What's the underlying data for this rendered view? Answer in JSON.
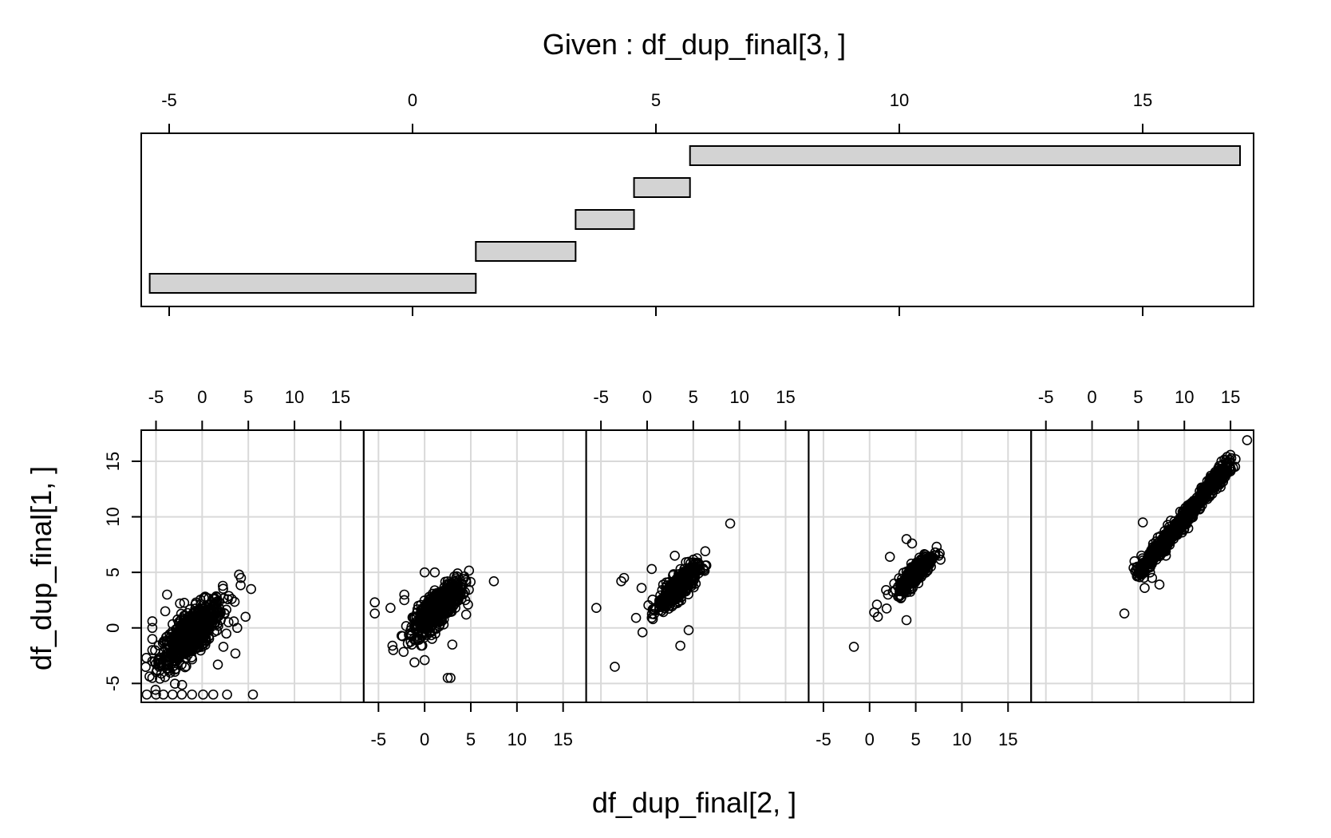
{
  "chart_data": {
    "type": "scatter",
    "subtype": "coplot",
    "given_label": "Given : df_dup_final[3, ]",
    "xlabel": "df_dup_final[2, ]",
    "ylabel": "df_dup_final[1, ]",
    "given_axis": {
      "range": [
        -5.6,
        17.2
      ],
      "ticks": [
        -5,
        0,
        5,
        10,
        15
      ]
    },
    "given_intervals": [
      {
        "from": -5.4,
        "to": 1.3
      },
      {
        "from": 1.3,
        "to": 3.35
      },
      {
        "from": 3.35,
        "to": 4.55
      },
      {
        "from": 4.55,
        "to": 5.7
      },
      {
        "from": 5.7,
        "to": 17.0
      }
    ],
    "panel_x_range": [
      -6.6,
      17.5
    ],
    "panel_x_ticks": [
      -5,
      0,
      5,
      10,
      15
    ],
    "panel_y_range": [
      -6.7,
      17.8
    ],
    "panel_y_ticks": [
      -5,
      0,
      5,
      10,
      15
    ],
    "grid": true,
    "panels": [
      {
        "outliers": [
          [
            -6,
            -6
          ],
          [
            -5,
            -6
          ],
          [
            -4.2,
            -6
          ],
          [
            -3.2,
            -6
          ],
          [
            -2.2,
            -6
          ],
          [
            -1.1,
            -6
          ],
          [
            0.1,
            -6
          ],
          [
            1.2,
            -6
          ],
          [
            2.7,
            -6
          ],
          [
            5.5,
            -6
          ],
          [
            -5.4,
            -4.5
          ],
          [
            -5.4,
            -3
          ],
          [
            -5.4,
            -2
          ],
          [
            -5.4,
            -1
          ],
          [
            -5.4,
            0
          ],
          [
            -5.4,
            0.6
          ],
          [
            -3.8,
            3
          ],
          [
            -4,
            1.5
          ],
          [
            -2.4,
            2.2
          ],
          [
            4,
            4.8
          ],
          [
            4.2,
            4.5
          ],
          [
            5.3,
            3.5
          ],
          [
            4.7,
            1
          ],
          [
            3.8,
            0
          ],
          [
            3.6,
            -2.3
          ],
          [
            1.7,
            -3.3
          ],
          [
            2.3,
            -1.7
          ],
          [
            3.2,
            2.6
          ]
        ],
        "cluster": {
          "cx": -1.2,
          "cy": -0.5,
          "sx": 1.7,
          "sy": 1.5,
          "rho": 0.75,
          "n": 650
        }
      },
      {
        "outliers": [
          [
            -5.4,
            2.3
          ],
          [
            -5.4,
            1.3
          ],
          [
            -3.7,
            1.8
          ],
          [
            -3.4,
            -2
          ],
          [
            -2.2,
            3
          ],
          [
            -2.2,
            2.5
          ],
          [
            -1.1,
            -3.1
          ],
          [
            0,
            -2.9
          ],
          [
            2.5,
            -4.5
          ],
          [
            2.8,
            -4.5
          ],
          [
            3,
            -1.5
          ],
          [
            4.4,
            2.5
          ],
          [
            4.7,
            2.1
          ],
          [
            7.5,
            4.2
          ],
          [
            0,
            5
          ],
          [
            1.1,
            5
          ],
          [
            4.5,
            1.2
          ],
          [
            -1.4,
            -0.6
          ]
        ],
        "cluster": {
          "cx": 1.4,
          "cy": 1.8,
          "sx": 1.3,
          "sy": 1.2,
          "rho": 0.78,
          "n": 550
        }
      },
      {
        "outliers": [
          [
            -5.5,
            1.8
          ],
          [
            -3.5,
            -3.5
          ],
          [
            -2.8,
            4.2
          ],
          [
            -2.5,
            4.5
          ],
          [
            -0.5,
            -0.4
          ],
          [
            9,
            9.4
          ],
          [
            3.6,
            -1.6
          ],
          [
            4.5,
            -0.2
          ],
          [
            6.3,
            6.9
          ],
          [
            -1.2,
            0.9
          ],
          [
            0.5,
            5.3
          ],
          [
            -0.6,
            3.6
          ],
          [
            3,
            6.5
          ]
        ],
        "cluster": {
          "cx": 3.3,
          "cy": 3.6,
          "sx": 1.05,
          "sy": 0.95,
          "rho": 0.8,
          "n": 420
        }
      },
      {
        "outliers": [
          [
            -1.7,
            -1.7
          ],
          [
            0.5,
            1.4
          ],
          [
            0.9,
            1
          ],
          [
            0.8,
            2.1
          ],
          [
            4,
            0.7
          ],
          [
            4,
            8
          ],
          [
            4.6,
            7.6
          ],
          [
            2.2,
            6.4
          ],
          [
            2,
            3
          ],
          [
            7.5,
            6.5
          ]
        ],
        "cluster": {
          "cx": 5,
          "cy": 5,
          "sx": 0.95,
          "sy": 0.9,
          "rho": 0.85,
          "n": 320
        }
      },
      {
        "outliers": [
          [
            16.8,
            16.9
          ],
          [
            15.5,
            14.5
          ],
          [
            15,
            14.1
          ],
          [
            3.5,
            1.3
          ],
          [
            5.5,
            9.5
          ],
          [
            4.6,
            6
          ],
          [
            4.5,
            5.4
          ],
          [
            5.7,
            3.6
          ],
          [
            6.5,
            4.5
          ],
          [
            7.3,
            3.9
          ],
          [
            8,
            6.5
          ],
          [
            13.5,
            12.5
          ],
          [
            12.5,
            11.6
          ]
        ],
        "cluster": {
          "line": true,
          "from": 5.2,
          "to": 14.8,
          "slope": 1.0,
          "offset": -0.1,
          "noise": 0.45,
          "n": 600
        }
      }
    ]
  },
  "ticks": {
    "given": [
      "-5",
      "0",
      "5",
      "10",
      "15"
    ],
    "panel_x": [
      "-5",
      "0",
      "5",
      "10",
      "15"
    ],
    "panel_y": [
      "-5",
      "0",
      "5",
      "10",
      "15"
    ]
  }
}
